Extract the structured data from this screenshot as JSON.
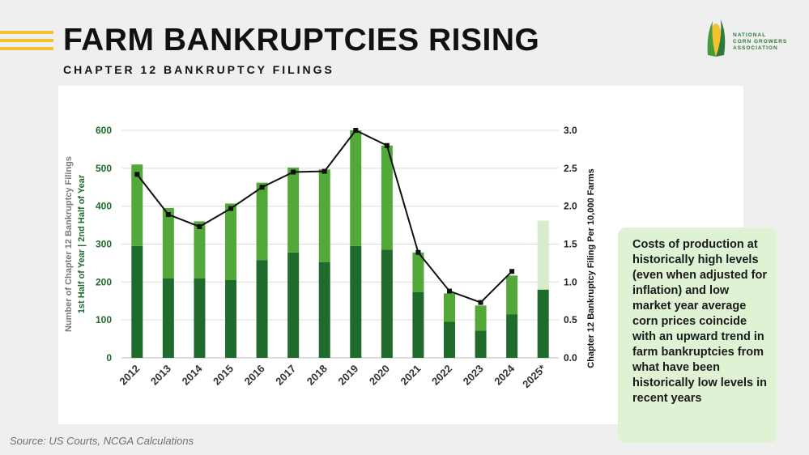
{
  "header": {
    "title": "FARM BANKRUPTCIES RISING",
    "subtitle": "CHAPTER 12 BANKRUPTCY FILINGS"
  },
  "logo": {
    "lines": [
      "NATIONAL",
      "CORN GROWERS",
      "ASSOCIATION"
    ]
  },
  "note": {
    "text": "Costs of production at historically high levels (even when adjusted for inflation) and low market year average corn prices coincide with an upward trend in farm bankruptcies from what have been historically low levels in recent years"
  },
  "source": "Source: US Courts, NCGA Calculations",
  "colors": {
    "first_half": "#1e6b2b",
    "second_half": "#53a83a",
    "projected": "#d7eccb",
    "line": "#111111",
    "axis_left_text": "#1f6b2a"
  },
  "chart_data": {
    "type": "bar",
    "categories": [
      "2012",
      "2013",
      "2014",
      "2015",
      "2016",
      "2017",
      "2018",
      "2019",
      "2020",
      "2021",
      "2022",
      "2023",
      "2024",
      "2025*"
    ],
    "series": [
      {
        "name": "1st Half of Year",
        "values": [
          295,
          210,
          210,
          205,
          258,
          278,
          252,
          295,
          285,
          173,
          95,
          72,
          115,
          180
        ]
      },
      {
        "name": "2nd Half of Year",
        "values": [
          215,
          185,
          150,
          202,
          204,
          224,
          245,
          305,
          275,
          105,
          75,
          66,
          102,
          182
        ]
      }
    ],
    "line_series": {
      "axis": "right",
      "values": [
        2.42,
        1.89,
        1.73,
        1.97,
        2.25,
        2.45,
        2.46,
        3.0,
        2.8,
        1.39,
        0.88,
        0.73,
        1.14,
        null
      ]
    },
    "ylabel_left_lines": [
      "Number of Chapter 12 Bankruptcy Filings",
      "1st Half of Year | 2nd Half of Year"
    ],
    "ylabel_right": "Chapter 12 Bankruptcy Filing Per 10,000 Farms",
    "ylim_left": [
      0,
      600
    ],
    "ylim_right": [
      0,
      3
    ],
    "yticks_left": [
      "0",
      "100",
      "200",
      "300",
      "400",
      "500",
      "600"
    ],
    "yticks_right": [
      "0.0",
      "0.5",
      "1.0",
      "1.5",
      "2.0",
      "2.5",
      "3.0"
    ],
    "grid": true
  }
}
